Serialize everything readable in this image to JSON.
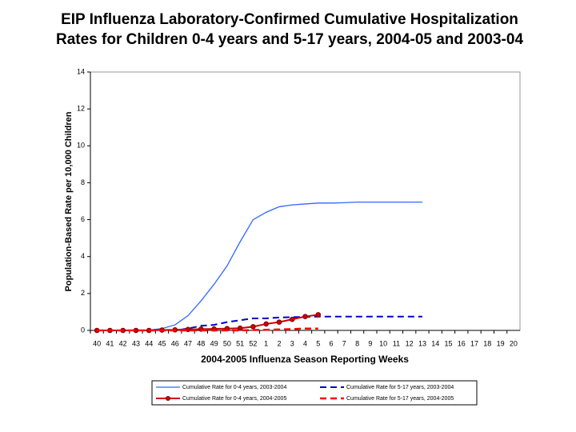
{
  "chart_data": {
    "type": "line",
    "title": [
      "EIP Influenza Laboratory-Confirmed Cumulative Hospitalization",
      "Rates for Children 0-4 years and 5-17 years, 2004-05 and 2003-04"
    ],
    "xlabel": "2004-2005 Influenza Season Reporting Weeks",
    "ylabel": "Population-Based Rate per 10,000 Children",
    "categories": [
      "40",
      "41",
      "42",
      "43",
      "44",
      "45",
      "46",
      "47",
      "48",
      "49",
      "50",
      "51",
      "52",
      "1",
      "2",
      "3",
      "4",
      "5",
      "6",
      "7",
      "8",
      "9",
      "10",
      "11",
      "12",
      "13",
      "14",
      "15",
      "16",
      "17",
      "18",
      "19",
      "20"
    ],
    "ylim": [
      0,
      14
    ],
    "yticks": [
      0,
      2,
      4,
      6,
      8,
      10,
      12,
      14
    ],
    "legend": "bottom",
    "series": [
      {
        "name": "Cumulative Rate for 0-4 years, 2003-2004",
        "color": "#3366ff",
        "line_style": "solid",
        "values": [
          0,
          0,
          0,
          0,
          0.02,
          0.1,
          0.3,
          0.8,
          1.6,
          2.5,
          3.5,
          4.8,
          6.0,
          6.4,
          6.7,
          6.8,
          6.85,
          6.9,
          6.9,
          6.92,
          6.95,
          6.95,
          6.95,
          6.95,
          6.95,
          6.95,
          null,
          null,
          null,
          null,
          null,
          null,
          null
        ]
      },
      {
        "name": "Cumulative Rate for 5-17 years, 2003-2004",
        "color": "#0000cc",
        "line_style": "dashed",
        "values": [
          0,
          0,
          0,
          0,
          0,
          0,
          0,
          0.1,
          0.25,
          0.3,
          0.45,
          0.55,
          0.65,
          0.65,
          0.7,
          0.72,
          0.73,
          0.75,
          0.75,
          0.75,
          0.75,
          0.75,
          0.75,
          0.75,
          0.75,
          0.75,
          null,
          null,
          null,
          null,
          null,
          null,
          null
        ]
      },
      {
        "name": "Cumulative Rate for 0-4 years, 2004-2005",
        "color": "#cc0000",
        "line_style": "solid",
        "markers": true,
        "values": [
          0,
          0,
          0,
          0,
          0,
          0.02,
          0.03,
          0.05,
          0.07,
          0.08,
          0.1,
          0.12,
          0.2,
          0.35,
          0.45,
          0.6,
          0.75,
          0.85,
          null,
          null,
          null,
          null,
          null,
          null,
          null,
          null,
          null,
          null,
          null,
          null,
          null,
          null,
          null
        ]
      },
      {
        "name": "Cumulative Rate for 5-17 years, 2004-2005",
        "color": "#ff0000",
        "line_style": "dashed",
        "values": [
          0,
          0,
          0,
          0,
          0,
          0,
          0,
          0,
          0,
          0,
          0,
          0,
          0.02,
          0.03,
          0.05,
          0.07,
          0.1,
          0.1,
          null,
          null,
          null,
          null,
          null,
          null,
          null,
          null,
          null,
          null,
          null,
          null,
          null,
          null,
          null
        ]
      }
    ]
  }
}
